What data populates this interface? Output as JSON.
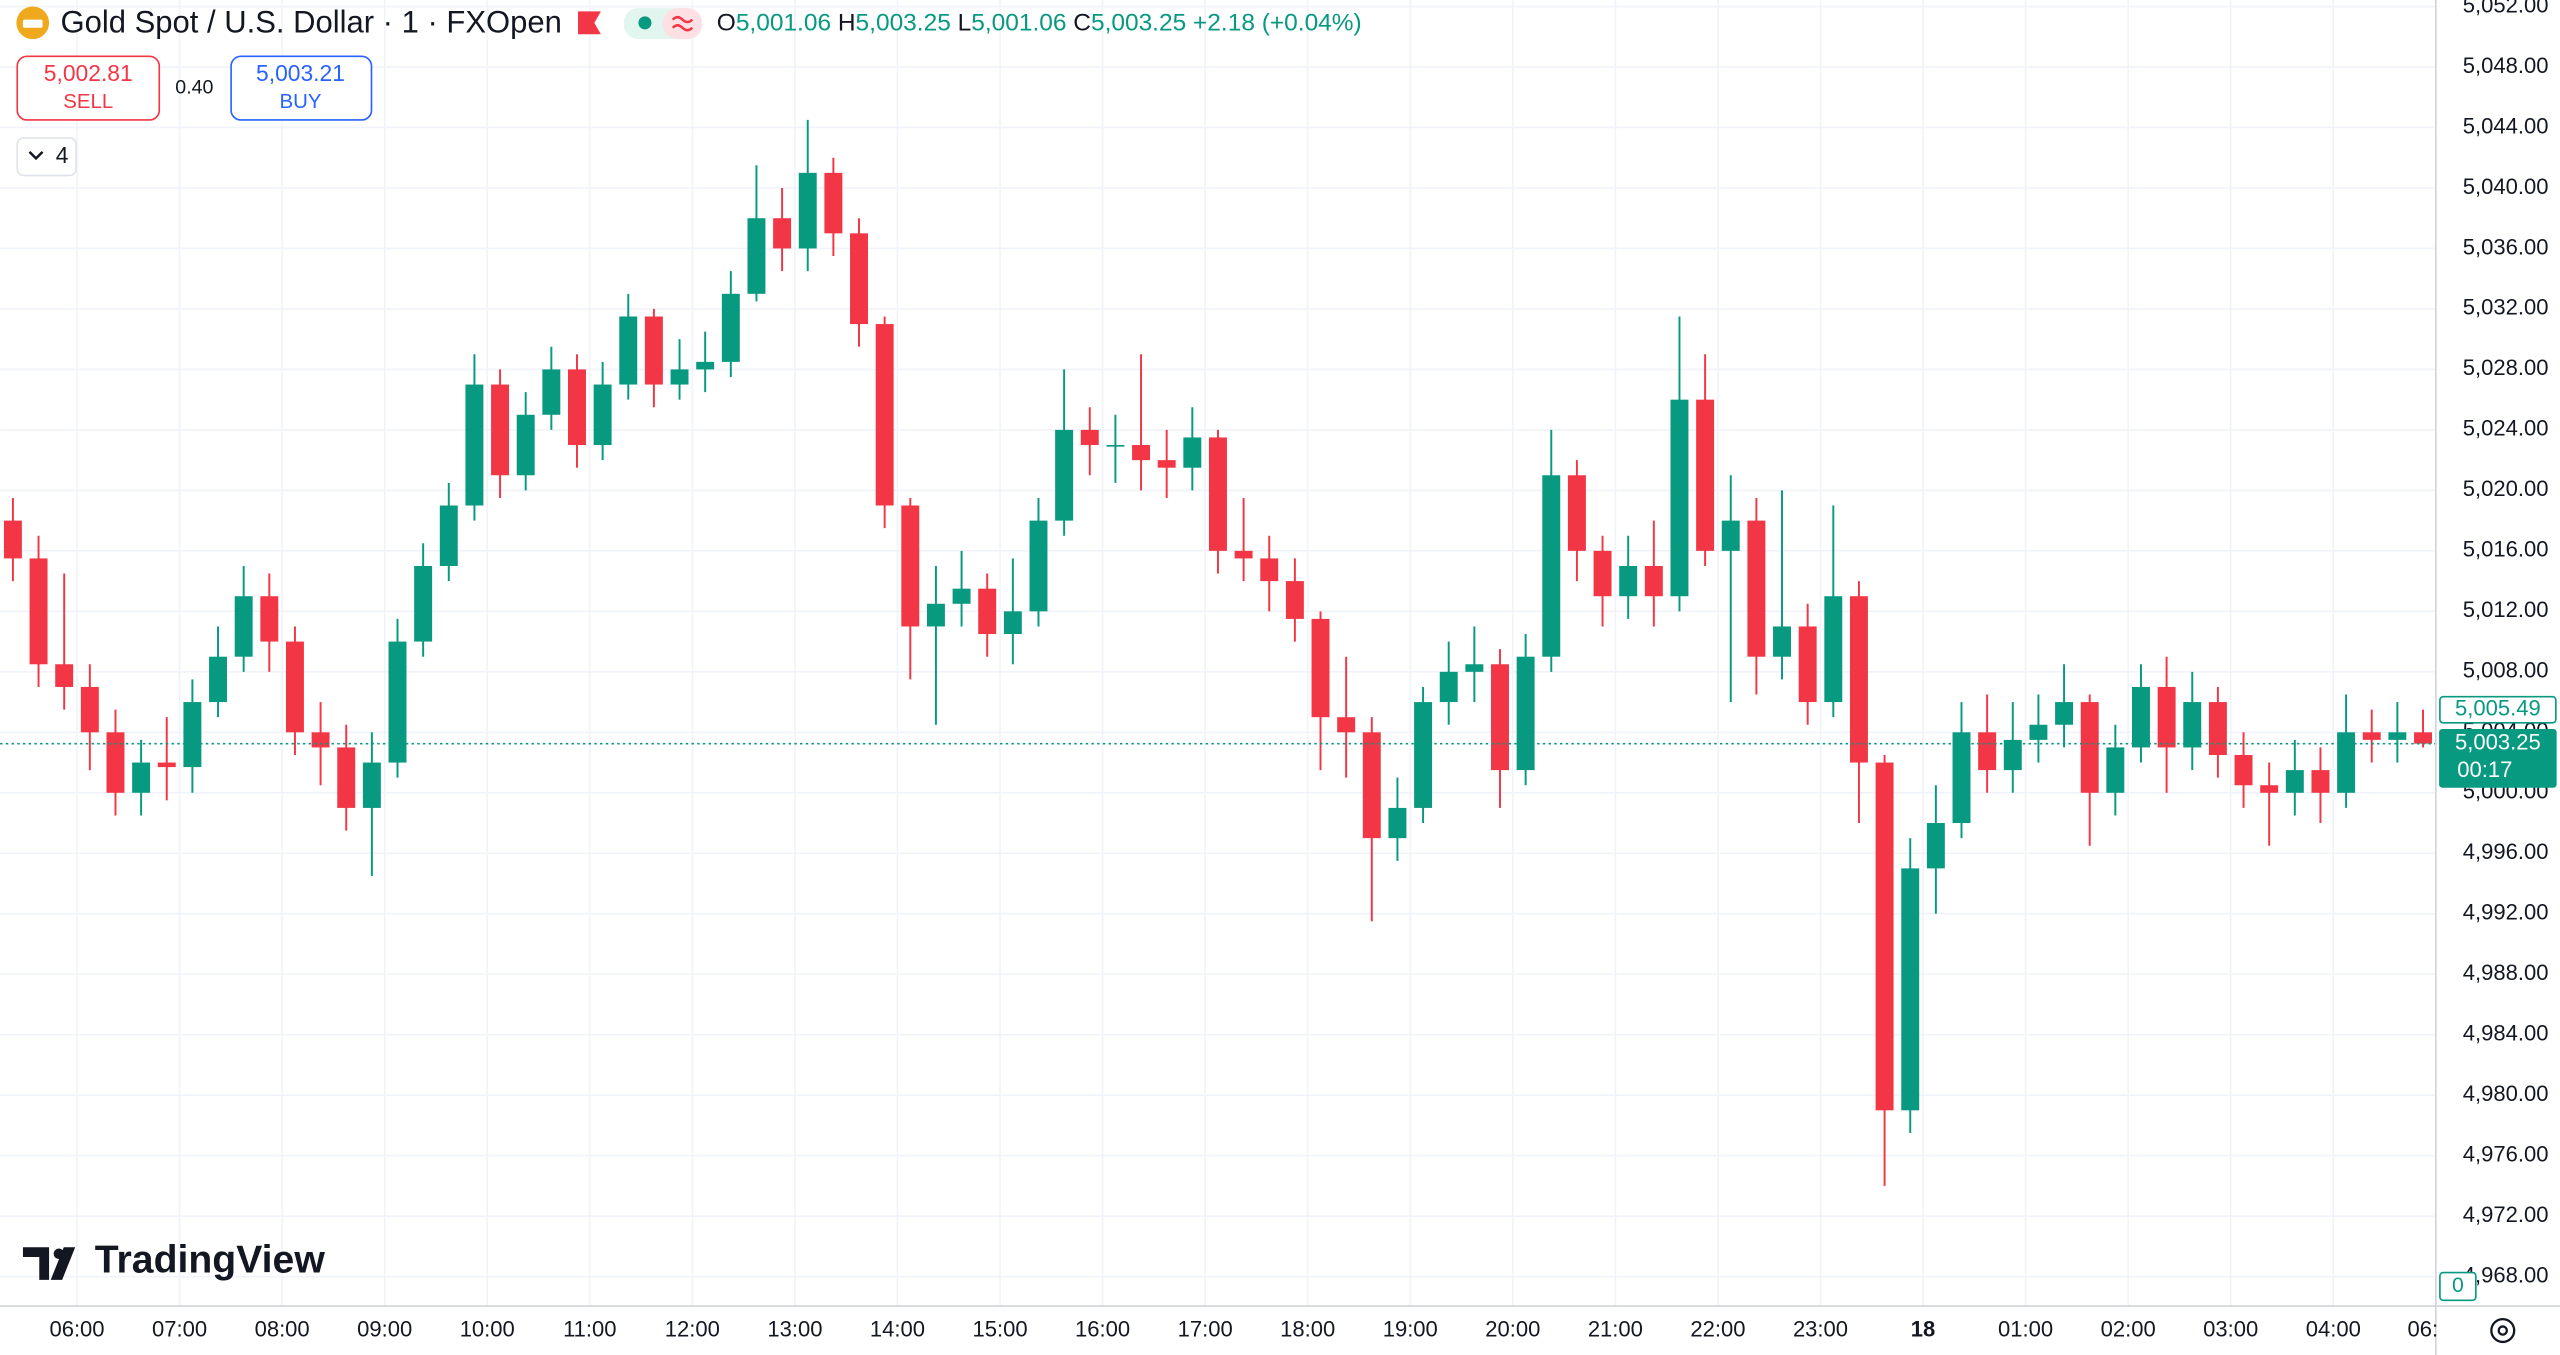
{
  "header": {
    "symbol": "Gold Spot / U.S. Dollar · 1 · FXOpen",
    "o_label": "O",
    "o": "5,001.06",
    "h_label": "H",
    "h": "5,003.25",
    "l_label": "L",
    "l": "5,001.06",
    "c_label": "C",
    "c": "5,003.25",
    "change": "+2.18 (+0.04%)"
  },
  "trade": {
    "sell_price": "5,002.81",
    "sell": "SELL",
    "spread": "0.40",
    "buy_price": "5,003.21",
    "buy": "BUY",
    "indicators": "4"
  },
  "brand": "TradingView",
  "chart_data": {
    "type": "candlestick",
    "up_color": "#089981",
    "down_color": "#f23645",
    "grid": true,
    "x": [
      -0.75,
      -0.5,
      -0.25,
      0,
      0.25,
      0.5,
      0.75,
      1,
      1.25,
      1.5,
      1.75,
      2,
      2.25,
      2.5,
      2.75,
      3,
      3.25,
      3.5,
      3.75,
      4,
      4.25,
      4.5,
      4.75,
      5,
      5.25,
      5.5,
      5.75,
      6,
      6.25,
      6.5,
      6.75,
      7,
      7.25,
      7.5,
      7.75,
      8,
      8.25,
      8.5,
      8.75,
      9,
      9.25,
      9.5,
      9.75,
      10,
      10.25,
      10.5,
      10.75,
      11,
      11.25,
      11.5,
      11.75,
      12,
      12.25,
      12.5,
      12.75,
      13,
      13.25,
      13.5,
      13.75,
      14,
      14.25,
      14.5,
      14.75,
      15,
      15.25,
      15.5,
      15.75,
      16,
      16.25,
      16.5,
      16.75,
      17,
      17.25,
      17.5,
      17.75,
      18,
      18.25,
      18.5,
      18.75,
      19,
      19.25,
      19.5,
      19.75,
      20,
      20.25,
      20.5,
      20.75,
      21,
      21.25,
      21.5,
      21.75,
      22,
      22.25,
      22.5,
      22.75
    ],
    "open": [
      5018,
      5015.5,
      5008.5,
      5007,
      5004,
      5000,
      5002,
      5001.7,
      5006,
      5009,
      5013,
      5010,
      5004,
      5003,
      4999,
      5002,
      5010,
      5015,
      5019,
      5027,
      5021,
      5025,
      5028,
      5023,
      5027,
      5031.5,
      5027,
      5028,
      5028.5,
      5033,
      5038,
      5036,
      5041,
      5037,
      5031,
      5019,
      5011,
      5012.5,
      5013.5,
      5010.5,
      5012,
      5018,
      5024,
      5023,
      5023,
      5022,
      5021.5,
      5023.5,
      5016,
      5015.5,
      5014,
      5011.5,
      5005,
      5004,
      4997,
      4999,
      5006,
      5008,
      5008.5,
      5001.5,
      5009,
      5021,
      5016,
      5013,
      5015,
      5013,
      5026,
      5016,
      5018,
      5009,
      5011,
      5006,
      5013,
      5002,
      4979,
      4995,
      4998,
      5004,
      5001.5,
      5003.5,
      5004.5,
      5006,
      5000,
      5003,
      5007,
      5003,
      5006,
      5002.5,
      5000.5,
      5000,
      5001.5,
      5000,
      5004,
      5003.5,
      5004
    ],
    "high": [
      5019.5,
      5017,
      5014.5,
      5008.5,
      5005.5,
      5003.5,
      5005,
      5007.5,
      5011,
      5015,
      5014.5,
      5011,
      5006,
      5004.5,
      5004,
      5011.5,
      5016.5,
      5020.5,
      5029,
      5028,
      5026.5,
      5029.5,
      5029,
      5028.5,
      5033,
      5032,
      5030,
      5030.5,
      5034.5,
      5041.5,
      5040,
      5044.5,
      5042,
      5038,
      5031.5,
      5019.5,
      5015,
      5016,
      5014.5,
      5015.5,
      5019.5,
      5028,
      5025.5,
      5025,
      5029,
      5024,
      5025.5,
      5024,
      5019.5,
      5017,
      5015.5,
      5012,
      5009,
      5005,
      5001,
      5007,
      5010,
      5011,
      5009.5,
      5010.5,
      5024,
      5022,
      5017,
      5017,
      5018,
      5031.5,
      5029,
      5021,
      5019.5,
      5020,
      5012.5,
      5019,
      5014,
      5002.5,
      4997,
      5000.5,
      5006,
      5006.5,
      5006,
      5006.5,
      5008.5,
      5006.5,
      5004.5,
      5008.5,
      5009,
      5008,
      5007,
      5004,
      5002,
      5003.5,
      5003,
      5006.5,
      5005.5,
      5006,
      5005.5
    ],
    "low": [
      5014,
      5007,
      5005.5,
      5001.5,
      4998.5,
      4998.5,
      4999.5,
      5000,
      5005,
      5008,
      5008,
      5002.5,
      5000.5,
      4997.5,
      4994.5,
      5001,
      5009,
      5014,
      5018,
      5019.5,
      5020,
      5024,
      5021.5,
      5022,
      5026,
      5025.5,
      5026,
      5026.5,
      5027.5,
      5032.5,
      5034.5,
      5034.5,
      5035.5,
      5029.5,
      5017.5,
      5007.5,
      5004.5,
      5011,
      5009,
      5008.5,
      5011,
      5017,
      5021,
      5020.5,
      5020,
      5019.5,
      5020,
      5014.5,
      5014,
      5012,
      5010,
      5001.5,
      5001,
      4991.5,
      4995.5,
      4998,
      5004.5,
      5006,
      4999,
      5000.5,
      5008,
      5014,
      5011,
      5011.5,
      5011,
      5012,
      5015,
      5006,
      5006.5,
      5007.5,
      5004.5,
      5005,
      4998,
      4974,
      4977.5,
      4992,
      4997,
      5000,
      5000,
      5002,
      5003,
      4996.5,
      4998.5,
      5002,
      5000,
      5001.5,
      5001,
      4999,
      4996.5,
      4998.5,
      4998,
      4999,
      5002,
      5002,
      5003
    ],
    "close": [
      5015.5,
      5008.5,
      5007,
      5004,
      5000,
      5002,
      5001.7,
      5006,
      5009,
      5013,
      5010,
      5004,
      5003,
      4999,
      5002,
      5010,
      5015,
      5019,
      5027,
      5021,
      5025,
      5028,
      5023,
      5027,
      5031.5,
      5027,
      5028,
      5028.5,
      5033,
      5038,
      5036,
      5041,
      5037,
      5031,
      5019,
      5011,
      5012.5,
      5013.5,
      5010.5,
      5012,
      5018,
      5024,
      5023,
      5023,
      5022,
      5021.5,
      5023.5,
      5016,
      5015.5,
      5014,
      5011.5,
      5005,
      5004,
      4997,
      4999,
      5006,
      5008,
      5008.5,
      5001.5,
      5009,
      5021,
      5016,
      5013,
      5015,
      5013,
      5026,
      5016,
      5018,
      5009,
      5011,
      5006,
      5013,
      5002,
      4979,
      4995,
      4998,
      5004,
      5001.5,
      5003.5,
      5004.5,
      5006,
      5000,
      5003,
      5007,
      5003,
      5006,
      5002.5,
      5000.5,
      5000,
      5001.5,
      5000,
      5004,
      5003.5,
      5004,
      5003.25
    ],
    "xlim": [
      -0.75,
      23
    ],
    "xticks": [
      {
        "value": 0,
        "label": "06:00"
      },
      {
        "value": 1,
        "label": "07:00"
      },
      {
        "value": 2,
        "label": "08:00"
      },
      {
        "value": 3,
        "label": "09:00"
      },
      {
        "value": 4,
        "label": "10:00"
      },
      {
        "value": 5,
        "label": "11:00"
      },
      {
        "value": 6,
        "label": "12:00"
      },
      {
        "value": 7,
        "label": "13:00"
      },
      {
        "value": 8,
        "label": "14:00"
      },
      {
        "value": 9,
        "label": "15:00"
      },
      {
        "value": 10,
        "label": "16:00"
      },
      {
        "value": 11,
        "label": "17:00"
      },
      {
        "value": 12,
        "label": "18:00"
      },
      {
        "value": 13,
        "label": "19:00"
      },
      {
        "value": 14,
        "label": "20:00"
      },
      {
        "value": 15,
        "label": "21:00"
      },
      {
        "value": 16,
        "label": "22:00"
      },
      {
        "value": 17,
        "label": "23:00"
      },
      {
        "value": 18,
        "label": "18"
      },
      {
        "value": 19,
        "label": "01:00"
      },
      {
        "value": 20,
        "label": "02:00"
      },
      {
        "value": 21,
        "label": "03:00"
      },
      {
        "value": 22,
        "label": "04:00"
      },
      {
        "value": 23,
        "label": "06:"
      }
    ],
    "ylim": [
      4968,
      5052
    ],
    "yticks": [
      {
        "value": 4968,
        "label": "4,968.00"
      },
      {
        "value": 4972,
        "label": "4,972.00"
      },
      {
        "value": 4976,
        "label": "4,976.00"
      },
      {
        "value": 4980,
        "label": "4,980.00"
      },
      {
        "value": 4984,
        "label": "4,984.00"
      },
      {
        "value": 4988,
        "label": "4,988.00"
      },
      {
        "value": 4992,
        "label": "4,992.00"
      },
      {
        "value": 4996,
        "label": "4,996.00"
      },
      {
        "value": 5000,
        "label": "5,000.00"
      },
      {
        "value": 5004,
        "label": "5,004.00"
      },
      {
        "value": 5008,
        "label": "5,008.00"
      },
      {
        "value": 5012,
        "label": "5,012.00"
      },
      {
        "value": 5016,
        "label": "5,016.00"
      },
      {
        "value": 5020,
        "label": "5,020.00"
      },
      {
        "value": 5024,
        "label": "5,024.00"
      },
      {
        "value": 5028,
        "label": "5,028.00"
      },
      {
        "value": 5032,
        "label": "5,032.00"
      },
      {
        "value": 5036,
        "label": "5,036.00"
      },
      {
        "value": 5040,
        "label": "5,040.00"
      },
      {
        "value": 5044,
        "label": "5,044.00"
      },
      {
        "value": 5048,
        "label": "5,048.00"
      },
      {
        "value": 5052,
        "label": "5,052.00"
      }
    ],
    "last_price": {
      "value": 5003.25,
      "label": "5,003.25"
    },
    "countdown": "00:17",
    "marker_price": {
      "value": 5005.49,
      "label": "5,005.49"
    },
    "volume_label": "0"
  }
}
